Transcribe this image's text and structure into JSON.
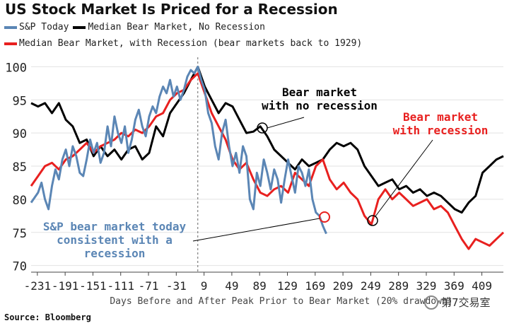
{
  "chart_data": {
    "type": "line",
    "title": "US Stock Market Is Priced for a Recession",
    "xlabel": "Days Before and After Peak Prior to Bear Market (20% drawdown)",
    "ylabel": "",
    "xlim": [
      -240,
      440
    ],
    "ylim": [
      69,
      101
    ],
    "xticks": [
      -231,
      -191,
      -151,
      -111,
      -71,
      -31,
      9,
      49,
      89,
      129,
      169,
      209,
      249,
      289,
      329,
      369,
      409
    ],
    "yticks": [
      70,
      75,
      80,
      85,
      90,
      95,
      100
    ],
    "peak_line_x": 0,
    "series": [
      {
        "name": "S&P Today",
        "color": "#5b86b5",
        "x": [
          -240,
          -230,
          -225,
          -220,
          -215,
          -210,
          -205,
          -200,
          -195,
          -190,
          -185,
          -180,
          -175,
          -170,
          -165,
          -160,
          -155,
          -150,
          -145,
          -140,
          -135,
          -130,
          -125,
          -120,
          -115,
          -110,
          -105,
          -100,
          -95,
          -90,
          -85,
          -80,
          -75,
          -70,
          -65,
          -60,
          -55,
          -50,
          -45,
          -40,
          -35,
          -30,
          -25,
          -20,
          -15,
          -10,
          -5,
          0,
          5,
          10,
          15,
          20,
          25,
          30,
          35,
          40,
          45,
          50,
          55,
          60,
          65,
          70,
          75,
          80,
          85,
          90,
          95,
          100,
          105,
          110,
          115,
          120,
          125,
          130,
          135,
          140,
          145,
          150,
          155,
          160,
          165,
          170,
          175,
          180,
          185
        ],
        "y": [
          79.5,
          81,
          82.5,
          80,
          78.5,
          82,
          84.5,
          83,
          86,
          87.5,
          85,
          88,
          86.5,
          84,
          83.5,
          86,
          89,
          87,
          88.5,
          85.5,
          87,
          91,
          88,
          92.5,
          90,
          88.5,
          91,
          87,
          89,
          92,
          93.5,
          91,
          89.5,
          92.5,
          94,
          93,
          95.5,
          97,
          96,
          98,
          95.5,
          97,
          95,
          96.5,
          98.5,
          99.5,
          99,
          100,
          98,
          96.5,
          93,
          91.5,
          88,
          86,
          90,
          92,
          88,
          85,
          87,
          84,
          88,
          86.5,
          80,
          78.5,
          84,
          82,
          86,
          84,
          81.5,
          84.5,
          83,
          79.5,
          83,
          86,
          83.5,
          81,
          85,
          84,
          82,
          84.5,
          80,
          78,
          77.5,
          76,
          74.8
        ]
      },
      {
        "name": "Median Bear Market, No Recession",
        "color": "#000000",
        "x": [
          -240,
          -230,
          -220,
          -210,
          -200,
          -190,
          -180,
          -170,
          -160,
          -150,
          -140,
          -130,
          -120,
          -110,
          -100,
          -90,
          -80,
          -70,
          -60,
          -50,
          -40,
          -30,
          -20,
          -10,
          0,
          10,
          20,
          30,
          40,
          50,
          60,
          70,
          80,
          90,
          100,
          110,
          120,
          130,
          140,
          150,
          160,
          170,
          180,
          190,
          200,
          210,
          220,
          230,
          240,
          250,
          260,
          270,
          280,
          290,
          300,
          310,
          320,
          330,
          340,
          350,
          360,
          370,
          380,
          390,
          400,
          410,
          420,
          430,
          440
        ],
        "y": [
          94.5,
          94,
          94.5,
          93,
          94.5,
          92,
          91,
          88.5,
          89,
          86.5,
          88,
          86.5,
          87.5,
          86,
          87.5,
          88,
          86,
          87,
          91,
          89.5,
          93,
          94.5,
          96,
          98,
          100,
          97,
          95,
          93,
          94.5,
          94,
          92,
          90,
          90.2,
          91,
          89.5,
          87.5,
          86.5,
          85.5,
          84.5,
          86,
          85,
          85.5,
          86,
          87.5,
          88.5,
          88,
          88.5,
          87.5,
          85,
          83.5,
          82,
          82.5,
          83,
          81.5,
          82,
          81,
          81.5,
          80.5,
          81,
          80.5,
          79.5,
          78.5,
          78,
          79.5,
          80.5,
          84,
          85,
          86,
          86.5
        ]
      },
      {
        "name": "Median Bear Market, with Recession (bear markets back to 1929)",
        "color": "#e8201f",
        "x": [
          -240,
          -230,
          -220,
          -210,
          -200,
          -190,
          -180,
          -170,
          -160,
          -150,
          -140,
          -130,
          -120,
          -110,
          -100,
          -90,
          -80,
          -70,
          -60,
          -50,
          -40,
          -30,
          -20,
          -10,
          0,
          10,
          20,
          30,
          40,
          50,
          60,
          70,
          80,
          90,
          100,
          110,
          120,
          130,
          140,
          150,
          160,
          170,
          180,
          190,
          200,
          210,
          220,
          230,
          240,
          250,
          260,
          270,
          280,
          290,
          300,
          310,
          320,
          330,
          340,
          350,
          360,
          370,
          380,
          390,
          400,
          410,
          420,
          430,
          440
        ],
        "y": [
          82,
          83.5,
          85,
          85.5,
          84.5,
          86,
          86.5,
          87.5,
          88.5,
          87,
          88,
          88.5,
          89,
          90,
          89.5,
          90.5,
          90,
          91,
          92.5,
          93,
          95,
          96,
          96.5,
          98,
          99,
          96,
          93,
          91,
          89,
          86,
          84.5,
          85.5,
          83,
          81,
          80.5,
          81.5,
          82,
          81,
          84,
          83,
          82,
          85,
          86,
          83,
          81.5,
          82.5,
          81,
          80,
          77.5,
          76.2,
          80,
          81.5,
          80,
          81,
          80,
          79,
          79.5,
          80,
          78.5,
          79,
          78,
          76,
          74,
          72.5,
          74,
          73.5,
          73,
          74,
          75
        ]
      }
    ],
    "annotations": [
      {
        "text": [
          "Bear market",
          "with no recession"
        ],
        "color": "#000000"
      },
      {
        "text": [
          "Bear market",
          "with recession"
        ],
        "color": "#e8201f"
      },
      {
        "text": [
          "S&P bear market today",
          "consistent with a",
          "recession"
        ],
        "color": "#5b86b5"
      }
    ]
  },
  "legend": {
    "sp": "S&P Today",
    "norec": "Median Bear Market, No Recession",
    "rec": "Median Bear Market, with Recession (bear markets back to 1929)"
  },
  "source": "Source: Bloomberg",
  "watermark": "第7交易室"
}
